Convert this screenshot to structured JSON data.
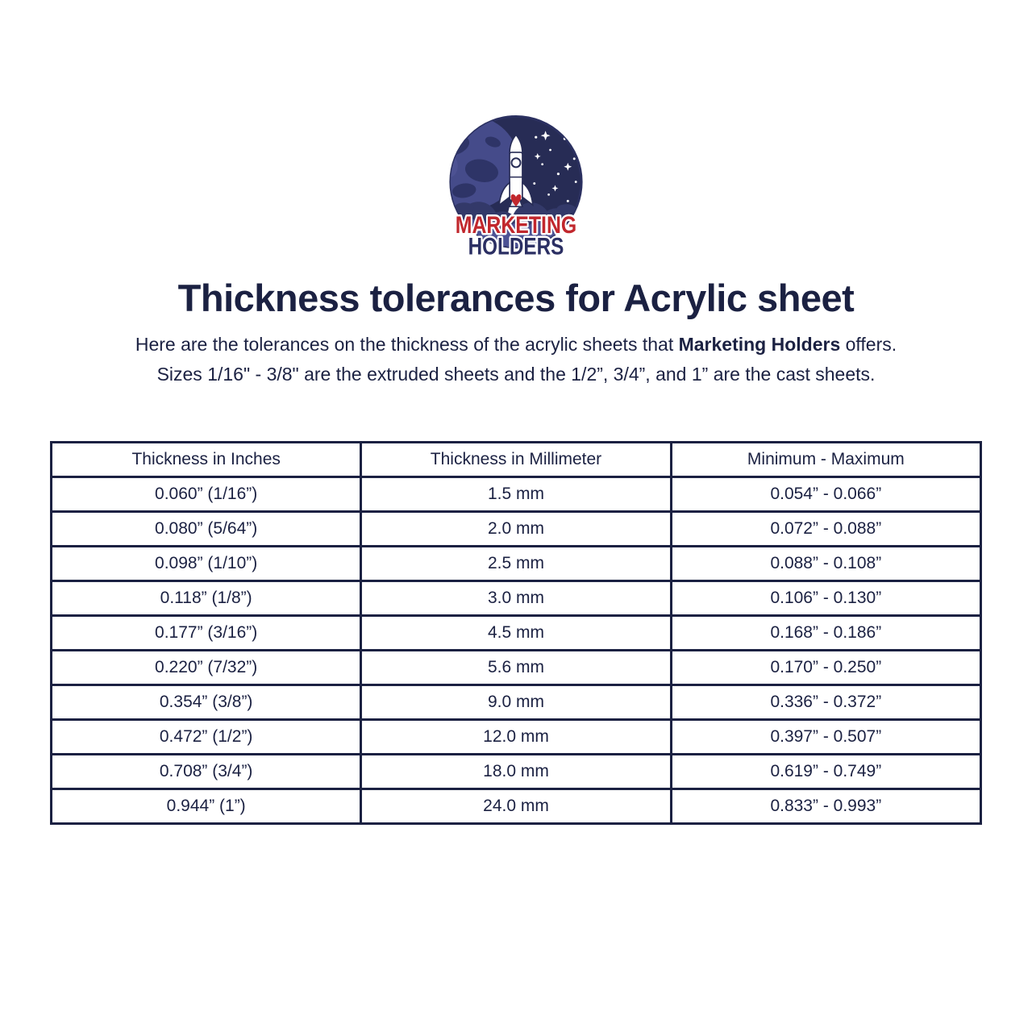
{
  "logo": {
    "brand_line1": "MARKETING",
    "brand_line2": "HOLDERS",
    "colors": {
      "space_bg": "#272c55",
      "planet": "#454b8a",
      "planet_dark": "#2e3467",
      "cloud_dark": "#333969",
      "cloud_light": "#4c5294",
      "rocket_white": "#ffffff",
      "brand_red": "#c1272d",
      "brand_navy": "#2b2f63"
    }
  },
  "title": "Thickness tolerances for Acrylic sheet",
  "intro": {
    "line1_pre": "Here are the tolerances on the thickness of the acrylic sheets that ",
    "line1_bold": "Marketing Holders",
    "line1_post": " offers.",
    "line2": "Sizes 1/16\" - 3/8\" are the extruded sheets and the 1/2”, 3/4”, and 1” are the cast sheets."
  },
  "table": {
    "headers": [
      "Thickness in Inches",
      "Thickness in Millimeter",
      "Minimum - Maximum"
    ],
    "rows": [
      [
        "0.060” (1/16”)",
        "1.5 mm",
        "0.054” - 0.066”"
      ],
      [
        "0.080” (5/64”)",
        "2.0 mm",
        "0.072” - 0.088”"
      ],
      [
        "0.098” (1/10”)",
        "2.5 mm",
        "0.088” - 0.108”"
      ],
      [
        "0.118” (1/8”)",
        "3.0 mm",
        "0.106” - 0.130”"
      ],
      [
        "0.177” (3/16”)",
        "4.5 mm",
        "0.168” - 0.186”"
      ],
      [
        "0.220” (7/32”)",
        "5.6 mm",
        "0.170” - 0.250”"
      ],
      [
        "0.354” (3/8”)",
        "9.0 mm",
        "0.336” - 0.372”"
      ],
      [
        "0.472” (1/2”)",
        "12.0 mm",
        "0.397” - 0.507”"
      ],
      [
        "0.708” (3/4”)",
        "18.0 mm",
        "0.619” - 0.749”"
      ],
      [
        "0.944” (1”)",
        "24.0 mm",
        "0.833” - 0.993”"
      ]
    ]
  },
  "colors": {
    "text": "#1b2142",
    "border": "#1b2142",
    "background": "#ffffff"
  }
}
